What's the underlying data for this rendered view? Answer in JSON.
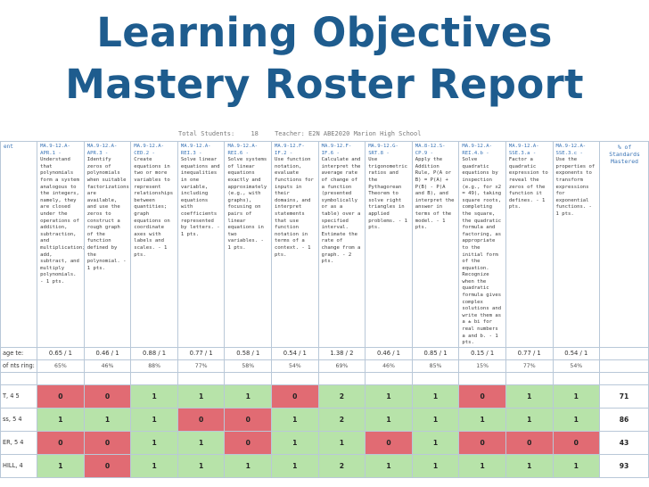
{
  "title": {
    "line1": "Learning Objectives",
    "line2": "Mastery Roster Report"
  },
  "meta": {
    "teacher_label": "Total Students:",
    "students": "18",
    "school": "Teacher:  E2N ABE2020 Marion High School"
  },
  "header": {
    "first_col": "ent",
    "standards": [
      {
        "code": "MA.9-12.A-APR.1 -",
        "text": "Understand that polynomials form a system analogous to the integers, namely, they are closed under the operations of addition, subtraction, and multiplication; add, subtract, and multiply polynomials. - 1 pts."
      },
      {
        "code": "MA.9-12.A-APR.3 -",
        "text": "Identify zeros of polynomials when suitable factorizations are available, and use the zeros to construct a rough graph of the function defined by the polynomial. - 1 pts."
      },
      {
        "code": "MA.9-12.A-CED.2 -",
        "text": "Create equations in two or more variables to represent relationships between quantities; graph equations on coordinate axes with labels and scales. - 1 pts."
      },
      {
        "code": "MA.9-12.A-REI.3 -",
        "text": "Solve linear equations and inequalities in one variable, including equations with coefficients represented by letters. - 1 pts."
      },
      {
        "code": "MA.9-12.A-REI.6 -",
        "text": "Solve systems of linear equations exactly and approximately (e.g., with graphs), focusing on pairs of linear equations in two variables. - 1 pts."
      },
      {
        "code": "MA.9-12.F-IF.2 -",
        "text": "Use function notation, evaluate functions for inputs in their domains, and interpret statements that use function notation in terms of a context. - 1 pts."
      },
      {
        "code": "MA.9-12.F-IF.6 -",
        "text": "Calculate and interpret the average rate of change of a function (presented symbolically or as a table) over a specified interval. Estimate the rate of change from a graph. - 2 pts."
      },
      {
        "code": "MA.9-12.G-SRT.8 -",
        "text": "Use trigonometric ratios and the Pythagorean Theorem to solve right triangles in applied problems. - 1 pts."
      },
      {
        "code": "MA.8-12.S-CP.9 -",
        "text": "Apply the Addition Rule, P(A or B) = P(A) + P(B) - P(A and B), and interpret the answer in terms of the model. - 1 pts."
      },
      {
        "code": "MA.9-12.A-REI.4.b -",
        "text": "Solve quadratic equations by inspection (e.g., for x2 = 49), taking square roots, completing the square, the quadratic formula and factoring, as appropriate to the initial form of the equation. Recognize when the quadratic formula gives complex solutions and write them as a ± bi for real numbers a and b. - 1 pts."
      },
      {
        "code": "MA.9-12.A-SSE.3.a -",
        "text": "Factor a quadratic expression to reveal the zeros of the function it defines. - 1 pts."
      },
      {
        "code": "MA.9-12.A-SSE.3.c -",
        "text": "Use the properties of exponents to transform expressions for exponential functions. - 1 pts."
      }
    ],
    "mastered": "% of Standards Mastered"
  },
  "average_row": {
    "label": "age te:",
    "values": [
      "0.65 / 1",
      "0.46 / 1",
      "0.88 / 1",
      "0.77 / 1",
      "0.58 / 1",
      "0.54 / 1",
      "1.38 / 2",
      "0.46 / 1",
      "0.85 / 1",
      "0.15 / 1",
      "0.77 / 1",
      "0.54 / 1"
    ]
  },
  "percent_row": {
    "label": "of nts ring:",
    "values": [
      "65%",
      "46%",
      "88%",
      "77%",
      "58%",
      "54%",
      "69%",
      "46%",
      "85%",
      "15%",
      "77%",
      "54%"
    ]
  },
  "students": [
    {
      "label": "T, 4 5",
      "cells": [
        "0",
        "0",
        "1",
        "1",
        "1",
        "0",
        "2",
        "1",
        "1",
        "0",
        "1",
        "1"
      ],
      "total": "71"
    },
    {
      "label": "ss, 5 4",
      "cells": [
        "1",
        "1",
        "1",
        "0",
        "0",
        "1",
        "2",
        "1",
        "1",
        "1",
        "1",
        "1"
      ],
      "total": "86"
    },
    {
      "label": "ER, 5 4",
      "cells": [
        "0",
        "0",
        "1",
        "1",
        "0",
        "1",
        "1",
        "0",
        "1",
        "0",
        "0",
        "0"
      ],
      "total": "43"
    },
    {
      "label": "HILL, 4",
      "cells": [
        "1",
        "0",
        "1",
        "1",
        "1",
        "1",
        "2",
        "1",
        "1",
        "1",
        "1",
        "1"
      ],
      "total": "93"
    }
  ],
  "colors": {
    "title": "#1e5c8e",
    "mastered": "#b7e3a9",
    "not_mastered": "#e16b73",
    "code": "#3a74b6"
  }
}
